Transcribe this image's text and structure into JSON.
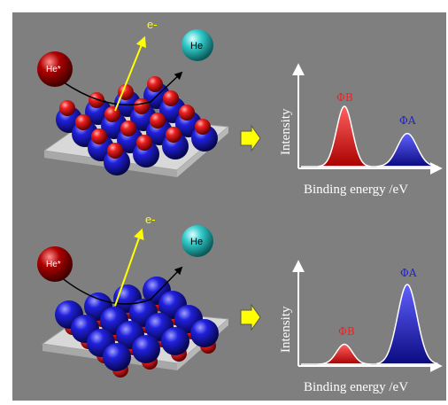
{
  "colors": {
    "background": "#808080",
    "cation_red": "#cc0000",
    "anion_blue": "#1a1ad0",
    "he_ion": "#b00000",
    "he_atom": "#33cccc",
    "electron_arrow": "#ffff00",
    "peak_B": "#dd2222",
    "peak_A": "#2222cc",
    "arrow_right": "#ffff00"
  },
  "top_panel": {
    "electron_label": "e-",
    "he_ion_label": "He*",
    "he_atom_label": "He",
    "y_axis_label": "Intensity",
    "x_axis_label": "Binding energy /eV",
    "peak_B_label": "ΦB",
    "peak_A_label": "ΦA",
    "peak_B_height": 1.0,
    "peak_A_height": 0.55
  },
  "bottom_panel": {
    "electron_label": "e-",
    "he_ion_label": "He*",
    "he_atom_label": "He",
    "y_axis_label": "Intensity",
    "x_axis_label": "Binding energy /eV",
    "peak_B_label": "ΦB",
    "peak_A_label": "ΦA",
    "peak_B_height": 0.25,
    "peak_A_height": 1.0
  }
}
